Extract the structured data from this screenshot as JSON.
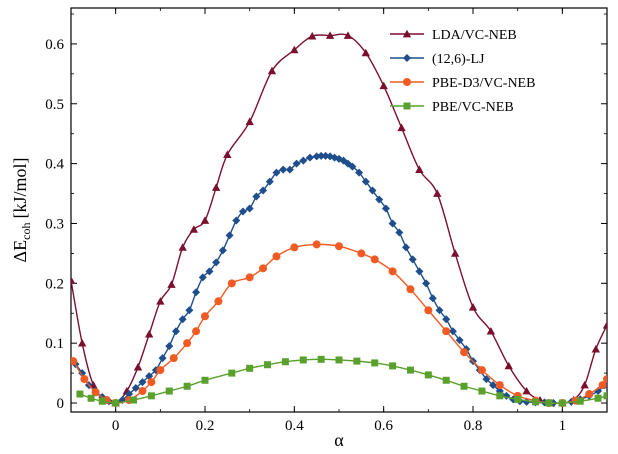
{
  "chart_data": {
    "type": "line",
    "title": "",
    "xlabel": "α",
    "ylabel": "ΔE",
    "ylabel_subscript": "coh",
    "ylabel_unit": "[kJ/mol]",
    "xlim": [
      -0.1,
      1.1
    ],
    "ylim": [
      -0.015,
      0.66
    ],
    "xticks": [
      0,
      0.2,
      0.4,
      0.6,
      0.8,
      1
    ],
    "xtick_labels": [
      "0",
      "0.2",
      "0.4",
      "0.6",
      "0.8",
      "1"
    ],
    "yticks": [
      0,
      0.1,
      0.2,
      0.3,
      0.4,
      0.5,
      0.6
    ],
    "ytick_labels": [
      "0",
      "0.1",
      "0.2",
      "0.3",
      "0.4",
      "0.5",
      "0.6"
    ],
    "grid": false,
    "legend_position": "top-right",
    "series": [
      {
        "name": "LDA/VC-NEB",
        "color": "#7b0f2e",
        "marker": "triangle",
        "values": [
          [
            -0.1,
            0.205
          ],
          [
            -0.075,
            0.1
          ],
          [
            -0.05,
            0.03
          ],
          [
            -0.025,
            0.005
          ],
          [
            0.0,
            0.0
          ],
          [
            0.025,
            0.02
          ],
          [
            0.05,
            0.06
          ],
          [
            0.075,
            0.115
          ],
          [
            0.1,
            0.17
          ],
          [
            0.125,
            0.198
          ],
          [
            0.15,
            0.26
          ],
          [
            0.175,
            0.29
          ],
          [
            0.2,
            0.305
          ],
          [
            0.225,
            0.36
          ],
          [
            0.25,
            0.415
          ],
          [
            0.3,
            0.47
          ],
          [
            0.35,
            0.555
          ],
          [
            0.4,
            0.59
          ],
          [
            0.44,
            0.613
          ],
          [
            0.48,
            0.614
          ],
          [
            0.52,
            0.614
          ],
          [
            0.56,
            0.585
          ],
          [
            0.6,
            0.53
          ],
          [
            0.64,
            0.46
          ],
          [
            0.68,
            0.39
          ],
          [
            0.72,
            0.35
          ],
          [
            0.76,
            0.25
          ],
          [
            0.8,
            0.16
          ],
          [
            0.84,
            0.12
          ],
          [
            0.88,
            0.062
          ],
          [
            0.92,
            0.02
          ],
          [
            0.95,
            0.005
          ],
          [
            0.975,
            0.0
          ],
          [
            1.0,
            0.0
          ],
          [
            1.025,
            0.005
          ],
          [
            1.05,
            0.03
          ],
          [
            1.075,
            0.09
          ],
          [
            1.1,
            0.13
          ]
        ]
      },
      {
        "name": "(12,6)-LJ",
        "color": "#1f4e8c",
        "marker": "diamond",
        "values": [
          [
            -0.09,
            0.065
          ],
          [
            -0.075,
            0.05
          ],
          [
            -0.06,
            0.03
          ],
          [
            -0.045,
            0.02
          ],
          [
            -0.03,
            0.01
          ],
          [
            -0.015,
            0.003
          ],
          [
            0.0,
            0.0
          ],
          [
            0.015,
            0.005
          ],
          [
            0.03,
            0.015
          ],
          [
            0.045,
            0.025
          ],
          [
            0.06,
            0.035
          ],
          [
            0.075,
            0.045
          ],
          [
            0.09,
            0.055
          ],
          [
            0.105,
            0.075
          ],
          [
            0.12,
            0.095
          ],
          [
            0.135,
            0.12
          ],
          [
            0.15,
            0.14
          ],
          [
            0.165,
            0.155
          ],
          [
            0.18,
            0.185
          ],
          [
            0.195,
            0.21
          ],
          [
            0.21,
            0.22
          ],
          [
            0.225,
            0.235
          ],
          [
            0.24,
            0.255
          ],
          [
            0.255,
            0.28
          ],
          [
            0.27,
            0.305
          ],
          [
            0.285,
            0.32
          ],
          [
            0.3,
            0.325
          ],
          [
            0.315,
            0.345
          ],
          [
            0.33,
            0.355
          ],
          [
            0.345,
            0.37
          ],
          [
            0.36,
            0.385
          ],
          [
            0.375,
            0.39
          ],
          [
            0.39,
            0.39
          ],
          [
            0.405,
            0.4
          ],
          [
            0.42,
            0.405
          ],
          [
            0.435,
            0.41
          ],
          [
            0.45,
            0.412
          ],
          [
            0.46,
            0.413
          ],
          [
            0.47,
            0.413
          ],
          [
            0.48,
            0.412
          ],
          [
            0.49,
            0.41
          ],
          [
            0.5,
            0.408
          ],
          [
            0.51,
            0.405
          ],
          [
            0.52,
            0.4
          ],
          [
            0.53,
            0.395
          ],
          [
            0.545,
            0.385
          ],
          [
            0.56,
            0.37
          ],
          [
            0.575,
            0.355
          ],
          [
            0.59,
            0.34
          ],
          [
            0.605,
            0.325
          ],
          [
            0.62,
            0.3
          ],
          [
            0.635,
            0.285
          ],
          [
            0.65,
            0.26
          ],
          [
            0.665,
            0.24
          ],
          [
            0.68,
            0.22
          ],
          [
            0.695,
            0.2
          ],
          [
            0.71,
            0.175
          ],
          [
            0.725,
            0.155
          ],
          [
            0.74,
            0.14
          ],
          [
            0.755,
            0.12
          ],
          [
            0.77,
            0.105
          ],
          [
            0.785,
            0.09
          ],
          [
            0.8,
            0.07
          ],
          [
            0.815,
            0.055
          ],
          [
            0.83,
            0.04
          ],
          [
            0.845,
            0.03
          ],
          [
            0.86,
            0.02
          ],
          [
            0.875,
            0.012
          ],
          [
            0.89,
            0.006
          ],
          [
            0.905,
            0.003
          ],
          [
            0.92,
            0.002
          ],
          [
            0.94,
            0.001
          ],
          [
            0.96,
            0.001
          ],
          [
            0.98,
            0.0
          ],
          [
            1.0,
            0.0
          ],
          [
            1.02,
            0.002
          ],
          [
            1.04,
            0.006
          ],
          [
            1.06,
            0.012
          ],
          [
            1.08,
            0.02
          ],
          [
            1.095,
            0.03
          ]
        ]
      },
      {
        "name": "PBE-D3/VC-NEB",
        "color": "#f15a22",
        "marker": "circle",
        "values": [
          [
            -0.095,
            0.07
          ],
          [
            -0.07,
            0.04
          ],
          [
            -0.045,
            0.018
          ],
          [
            -0.02,
            0.005
          ],
          [
            0.0,
            0.0
          ],
          [
            0.03,
            0.005
          ],
          [
            0.06,
            0.02
          ],
          [
            0.08,
            0.035
          ],
          [
            0.1,
            0.055
          ],
          [
            0.13,
            0.075
          ],
          [
            0.16,
            0.1
          ],
          [
            0.18,
            0.12
          ],
          [
            0.2,
            0.145
          ],
          [
            0.23,
            0.17
          ],
          [
            0.26,
            0.2
          ],
          [
            0.3,
            0.21
          ],
          [
            0.33,
            0.225
          ],
          [
            0.36,
            0.245
          ],
          [
            0.4,
            0.26
          ],
          [
            0.45,
            0.265
          ],
          [
            0.5,
            0.262
          ],
          [
            0.55,
            0.25
          ],
          [
            0.58,
            0.24
          ],
          [
            0.62,
            0.22
          ],
          [
            0.66,
            0.19
          ],
          [
            0.7,
            0.155
          ],
          [
            0.74,
            0.12
          ],
          [
            0.78,
            0.085
          ],
          [
            0.82,
            0.055
          ],
          [
            0.86,
            0.03
          ],
          [
            0.9,
            0.012
          ],
          [
            0.94,
            0.004
          ],
          [
            0.97,
            0.0
          ],
          [
            1.0,
            0.0
          ],
          [
            1.03,
            0.004
          ],
          [
            1.06,
            0.015
          ],
          [
            1.09,
            0.03
          ],
          [
            1.1,
            0.04
          ]
        ]
      },
      {
        "name": "PBE/VC-NEB",
        "color": "#5aa02c",
        "marker": "square",
        "values": [
          [
            -0.08,
            0.015
          ],
          [
            -0.055,
            0.008
          ],
          [
            -0.03,
            0.003
          ],
          [
            0.0,
            0.0
          ],
          [
            0.04,
            0.005
          ],
          [
            0.08,
            0.012
          ],
          [
            0.12,
            0.02
          ],
          [
            0.16,
            0.028
          ],
          [
            0.2,
            0.038
          ],
          [
            0.26,
            0.05
          ],
          [
            0.3,
            0.058
          ],
          [
            0.34,
            0.064
          ],
          [
            0.38,
            0.069
          ],
          [
            0.42,
            0.072
          ],
          [
            0.46,
            0.073
          ],
          [
            0.5,
            0.072
          ],
          [
            0.54,
            0.07
          ],
          [
            0.58,
            0.067
          ],
          [
            0.62,
            0.062
          ],
          [
            0.66,
            0.055
          ],
          [
            0.7,
            0.047
          ],
          [
            0.74,
            0.038
          ],
          [
            0.78,
            0.028
          ],
          [
            0.82,
            0.02
          ],
          [
            0.86,
            0.012
          ],
          [
            0.9,
            0.006
          ],
          [
            0.94,
            0.002
          ],
          [
            0.97,
            0.0
          ],
          [
            1.0,
            0.0
          ],
          [
            1.04,
            0.003
          ],
          [
            1.08,
            0.008
          ],
          [
            1.1,
            0.012
          ]
        ]
      }
    ]
  }
}
